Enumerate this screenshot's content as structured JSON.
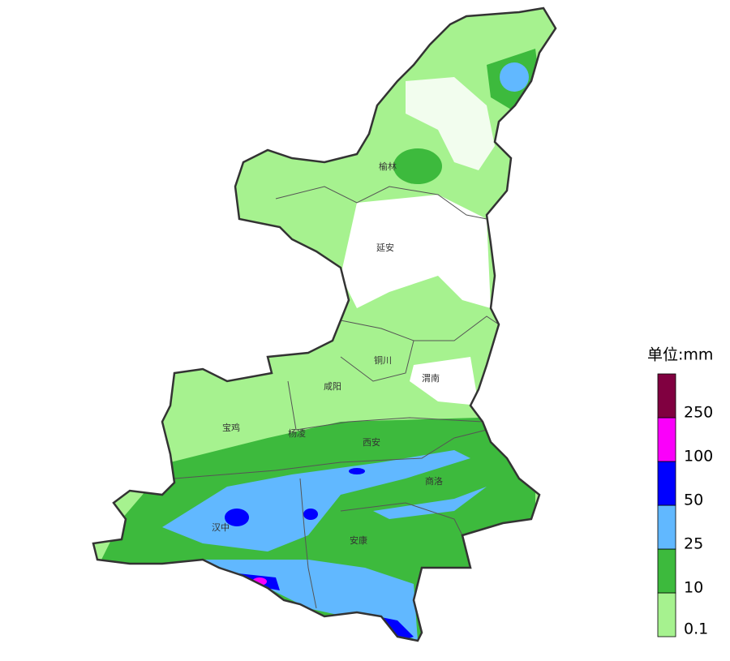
{
  "cities": [
    "榆林",
    "延安",
    "铜川",
    "渭南",
    "咸阳",
    "宝鸡",
    "杨凌",
    "西安",
    "商洛",
    "汉中",
    "安康"
  ],
  "legend": {
    "title": "单位:mm",
    "levels": [
      {
        "label": "0.1",
        "color": "#a6f28f"
      },
      {
        "label": "10",
        "color": "#3dba3d"
      },
      {
        "label": "25",
        "color": "#61b8ff"
      },
      {
        "label": "50",
        "color": "#0000ff"
      },
      {
        "label": "100",
        "color": "#fa00fa"
      },
      {
        "label": "250",
        "color": "#800040"
      }
    ]
  }
}
